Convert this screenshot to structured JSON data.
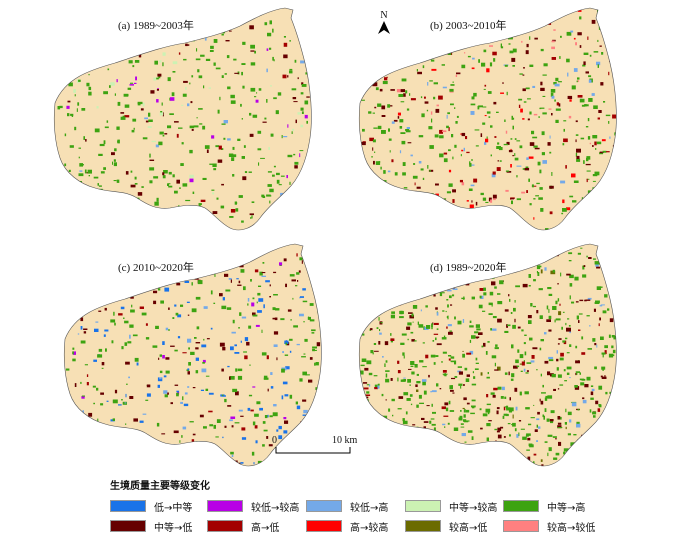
{
  "panels": [
    {
      "label": "(a) 1989~2003年"
    },
    {
      "label": "(b) 2003~2010年"
    },
    {
      "label": "(c) 2010~2020年"
    },
    {
      "label": "(d) 1989~2020年"
    }
  ],
  "north_arrow": {
    "label": "N"
  },
  "scale_bar": {
    "start": "0",
    "end": "10 km"
  },
  "legend": {
    "title": "生境质量主要等级变化",
    "items": [
      {
        "label": "低→中等",
        "color": "#1a73e8"
      },
      {
        "label": "较低→较高",
        "color": "#b800e6"
      },
      {
        "label": "较低→高",
        "color": "#74a9e8"
      },
      {
        "label": "中等→较高",
        "color": "#ccf2b3"
      },
      {
        "label": "中等→高",
        "color": "#3da311"
      },
      {
        "label": "中等→低",
        "color": "#660000"
      },
      {
        "label": "高→低",
        "color": "#a30000"
      },
      {
        "label": "高→较高",
        "color": "#ff0000"
      },
      {
        "label": "较高→低",
        "color": "#6b6b00"
      },
      {
        "label": "较高→较低",
        "color": "#ff8080"
      }
    ]
  },
  "colors": {
    "unchanged": "#f7e0b5",
    "outline": "#555555"
  }
}
